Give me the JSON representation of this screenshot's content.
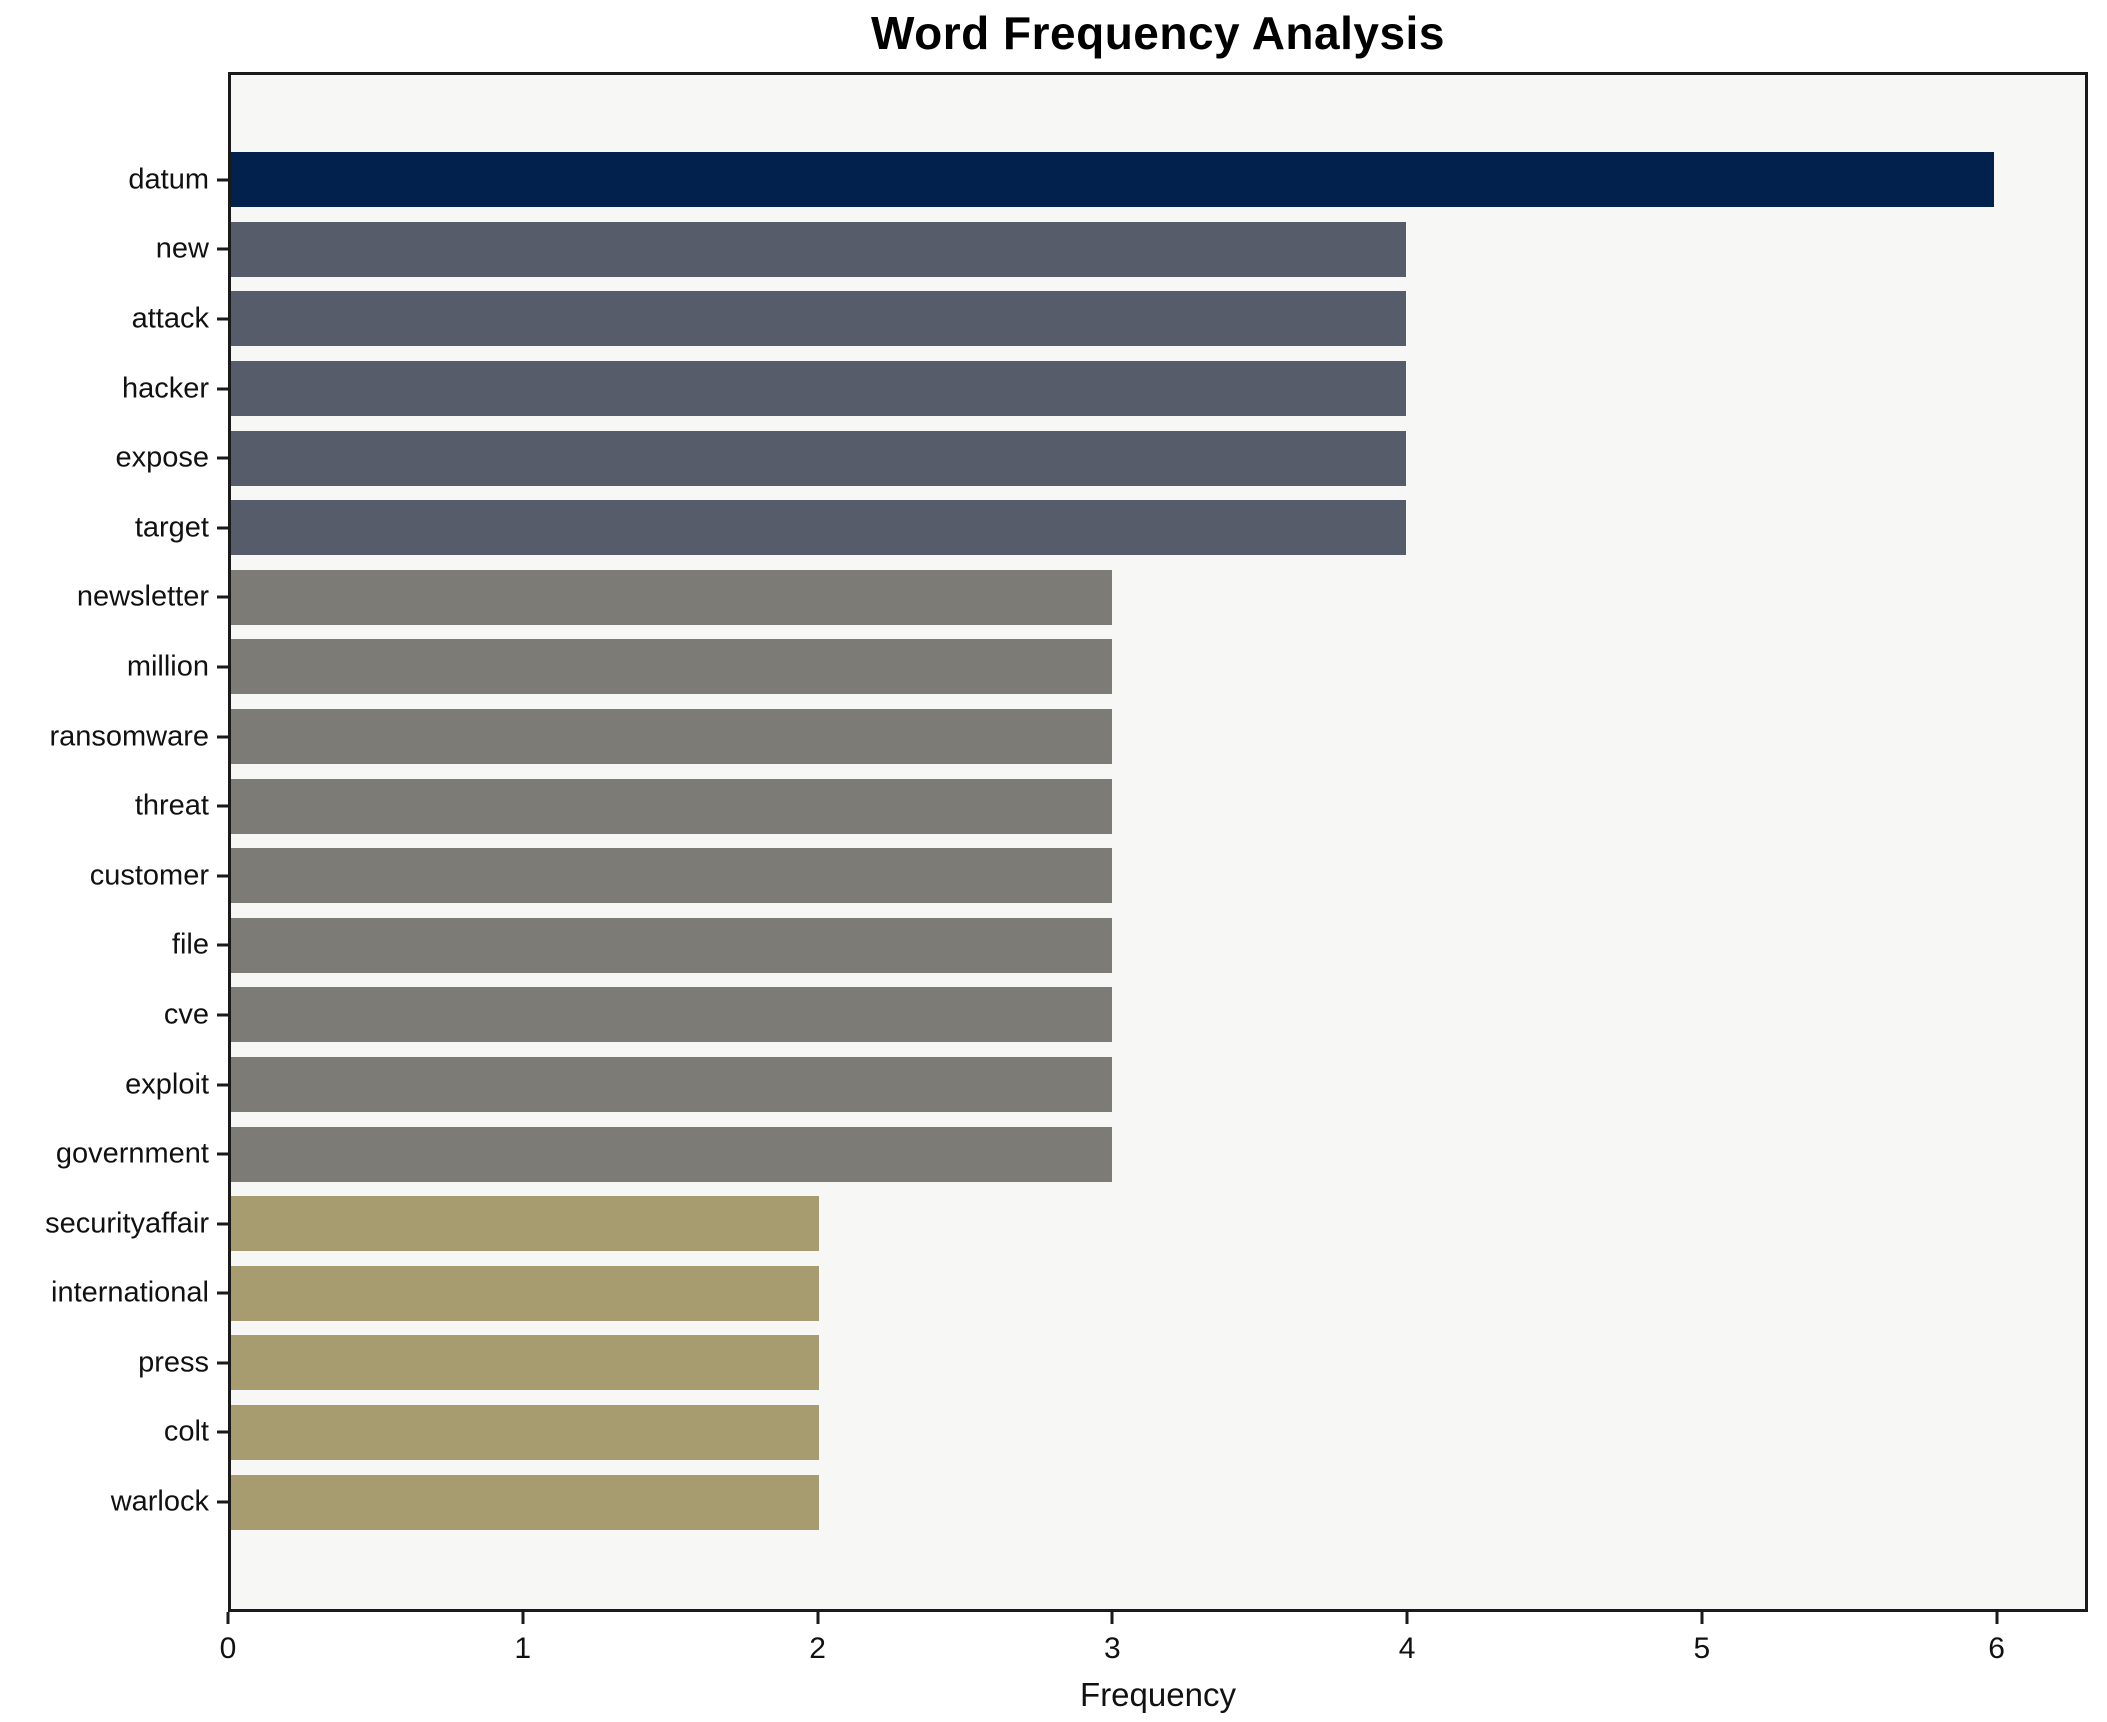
{
  "chart_data": {
    "type": "bar",
    "orientation": "horizontal",
    "title": "Word Frequency Analysis",
    "xlabel": "Frequency",
    "ylabel": "",
    "xlim": [
      0,
      6.31
    ],
    "xticks": [
      0,
      1,
      2,
      3,
      4,
      5,
      6
    ],
    "grid": false,
    "legend": null,
    "categories": [
      "datum",
      "new",
      "attack",
      "hacker",
      "expose",
      "target",
      "newsletter",
      "million",
      "ransomware",
      "threat",
      "customer",
      "file",
      "cve",
      "exploit",
      "government",
      "securityaffair",
      "international",
      "press",
      "colt",
      "warlock"
    ],
    "values": [
      6,
      4,
      4,
      4,
      4,
      4,
      3,
      3,
      3,
      3,
      3,
      3,
      3,
      3,
      3,
      2,
      2,
      2,
      2,
      2
    ],
    "bar_colors": [
      "#02214d",
      "#575c6b",
      "#575c6b",
      "#575c6b",
      "#575c6b",
      "#575c6b",
      "#7c7b76",
      "#7c7b76",
      "#7c7b76",
      "#7c7b76",
      "#7c7b76",
      "#7c7b76",
      "#7c7b76",
      "#7c7b76",
      "#7c7b76",
      "#a69c70",
      "#a69c70",
      "#a69c70",
      "#a69c70",
      "#a69c70"
    ],
    "colors": {
      "plot_background": "#f7f7f5",
      "figure_background": "#ffffff",
      "spine": "#1a1a1a",
      "text": "#111111"
    }
  }
}
